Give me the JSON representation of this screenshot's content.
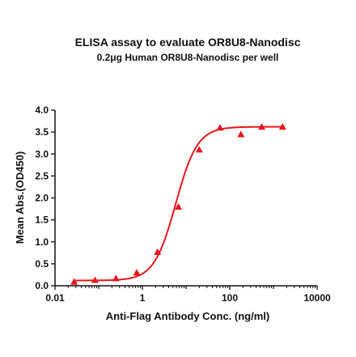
{
  "chart_data": {
    "type": "scatter",
    "title": "ELISA assay to evaluate OR8U8-Nanodisc",
    "subtitle": "0.2μg Human OR8U8-Nanodisc per well",
    "xlabel": "Anti-Flag Antibody Conc. (ng/ml)",
    "ylabel": "Mean Abs.(OD450)",
    "xscale": "log",
    "xlim": [
      0.01,
      10000
    ],
    "ylim": [
      0.0,
      4.0
    ],
    "x_ticks": [
      0.01,
      1,
      100,
      10000
    ],
    "x_tick_labels": [
      "0.01",
      "1",
      "100",
      "10000"
    ],
    "y_ticks": [
      0.0,
      0.5,
      1.0,
      1.5,
      2.0,
      2.5,
      3.0,
      3.5,
      4.0
    ],
    "y_tick_labels": [
      "0.0",
      "0.5",
      "1.0",
      "1.5",
      "2.0",
      "2.5",
      "3.0",
      "3.5",
      "4.0"
    ],
    "grid": false,
    "legend": "none",
    "color": "#e8161b",
    "marker": "triangle",
    "series": [
      {
        "x": [
          0.0274,
          0.0823,
          0.247,
          0.741,
          2.22,
          6.67,
          20.0,
          60.0,
          180.0,
          540.0,
          1620.0
        ],
        "y": [
          0.09,
          0.13,
          0.17,
          0.3,
          0.77,
          1.8,
          3.1,
          3.6,
          3.45,
          3.62,
          3.62
        ]
      }
    ],
    "fit": {
      "model": "4PL",
      "bottom": 0.12,
      "top": 3.62,
      "ec50": 5.8,
      "hill": 1.75
    }
  }
}
